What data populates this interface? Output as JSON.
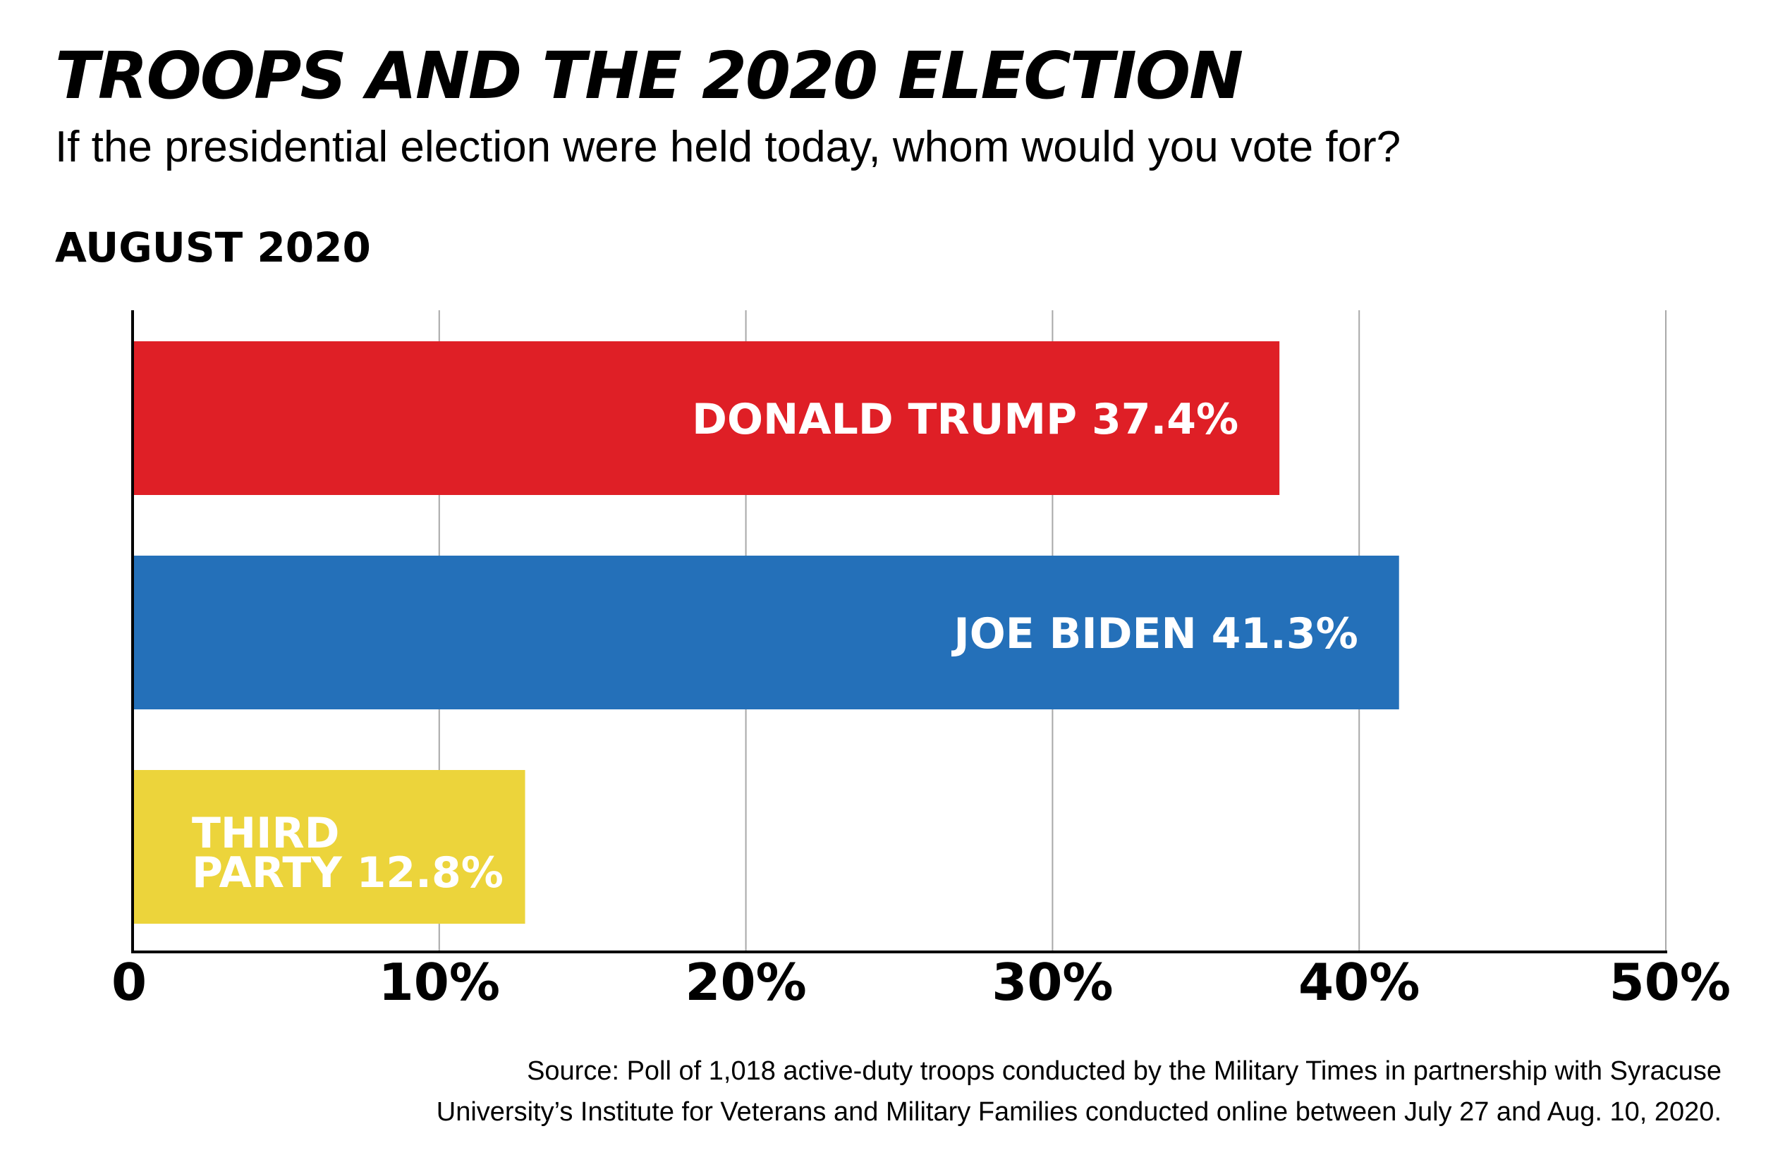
{
  "chart_data": {
    "type": "bar",
    "orientation": "horizontal",
    "title": "TROOPS AND THE 2020 ELECTION",
    "subtitle": "If the presidential election were held today, whom would you vote for?",
    "period": "AUGUST 2020",
    "categories": [
      "DONALD TRUMP",
      "JOE BIDEN",
      "THIRD PARTY"
    ],
    "values": [
      37.4,
      41.3,
      12.8
    ],
    "value_labels": [
      "37.4%",
      "41.3%",
      "12.8%"
    ],
    "colors": [
      "#df1f26",
      "#2470b9",
      "#ecd43b"
    ],
    "xlim": [
      0,
      50
    ],
    "xticks": [
      0,
      10,
      20,
      30,
      40,
      50
    ],
    "xtick_labels": [
      "0",
      "10%",
      "20%",
      "30%",
      "40%",
      "50%"
    ],
    "grid": true,
    "source": [
      "Source: Poll of 1,018 active-duty troops conducted by the Military Times in partnership with Syracuse",
      "University’s Institute for Veterans and Military Families conducted online between July 27 and Aug. 10, 2020."
    ]
  }
}
